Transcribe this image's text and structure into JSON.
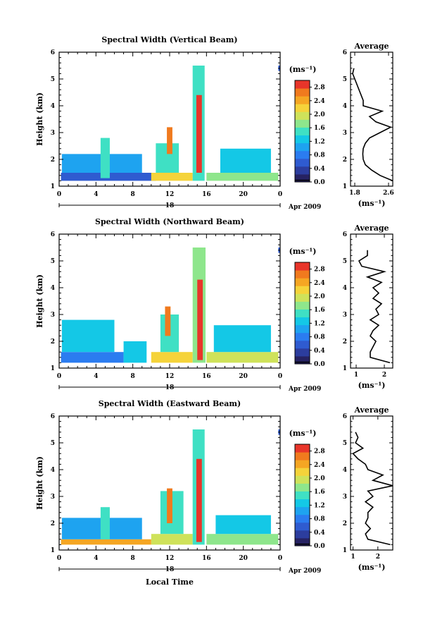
{
  "chart_data": [
    {
      "type": "heatmap",
      "title": "Spectral Width (Vertical Beam)",
      "ylabel": "Height (km)",
      "xlabel": "",
      "x_ticks": [
        "0",
        "4",
        "8",
        "12",
        "16",
        "20",
        "0"
      ],
      "y_ticks": [
        "1",
        "2",
        "3",
        "4",
        "5",
        "6"
      ],
      "xlim": [
        0,
        24
      ],
      "ylim": [
        1,
        6
      ],
      "date_label": "18",
      "date_suffix": "Apr 2009",
      "colorbar": {
        "unit": "(ms⁻¹)",
        "ticks": [
          "0.0",
          "0.4",
          "0.8",
          "1.2",
          "1.6",
          "2.0",
          "2.4",
          "2.8"
        ],
        "range": [
          0,
          3.0
        ]
      },
      "patches": [
        {
          "t": [
            0.2,
            10.5
          ],
          "h": [
            1.2,
            1.5
          ],
          "v": 0.5
        },
        {
          "t": [
            0.3,
            9.0
          ],
          "h": [
            1.5,
            2.2
          ],
          "v": 1.0
        },
        {
          "t": [
            4.5,
            5.5
          ],
          "h": [
            1.3,
            2.8
          ],
          "v": 1.4
        },
        {
          "t": [
            10.0,
            14.5
          ],
          "h": [
            1.2,
            1.5
          ],
          "v": 2.3
        },
        {
          "t": [
            10.5,
            13.0
          ],
          "h": [
            1.5,
            2.6
          ],
          "v": 1.5
        },
        {
          "t": [
            11.7,
            12.3
          ],
          "h": [
            2.2,
            3.2
          ],
          "v": 2.7
        },
        {
          "t": [
            14.5,
            15.8
          ],
          "h": [
            1.2,
            5.5
          ],
          "v": 1.6
        },
        {
          "t": [
            14.9,
            15.5
          ],
          "h": [
            1.5,
            4.4
          ],
          "v": 2.9
        },
        {
          "t": [
            16.0,
            23.8
          ],
          "h": [
            1.2,
            1.5
          ],
          "v": 1.8
        },
        {
          "t": [
            17.5,
            23.0
          ],
          "h": [
            1.5,
            2.4
          ],
          "v": 1.2
        },
        {
          "t": [
            23.8,
            24.0
          ],
          "h": [
            5.3,
            5.5
          ],
          "v": 0.6
        }
      ],
      "average": {
        "xlabel": "(ms⁻¹)",
        "title": "Average",
        "x_ticks": [
          "1.8",
          "2.6"
        ],
        "xlim": [
          1.7,
          2.7
        ],
        "ylim": [
          1,
          6
        ],
        "y_ticks": [
          "1",
          "2",
          "3",
          "4",
          "5",
          "6"
        ],
        "height": [
          1.2,
          1.4,
          1.6,
          1.8,
          2.0,
          2.2,
          2.4,
          2.6,
          2.8,
          3.0,
          3.2,
          3.4,
          3.6,
          3.8,
          4.0,
          4.2,
          4.4,
          4.6,
          4.8,
          5.0,
          5.2,
          5.4
        ],
        "value": [
          2.7,
          2.4,
          2.2,
          2.05,
          2.0,
          1.99,
          2.0,
          2.05,
          2.15,
          2.4,
          2.65,
          2.3,
          2.15,
          2.45,
          2.0,
          2.0,
          1.95,
          1.9,
          1.85,
          1.8,
          1.75,
          1.78
        ]
      }
    },
    {
      "type": "heatmap",
      "title": "Spectral Width (Northward Beam)",
      "ylabel": "Height (km)",
      "xlabel": "",
      "x_ticks": [
        "0",
        "4",
        "8",
        "12",
        "16",
        "20",
        "0"
      ],
      "y_ticks": [
        "1",
        "2",
        "3",
        "4",
        "5",
        "6"
      ],
      "xlim": [
        0,
        24
      ],
      "ylim": [
        1,
        6
      ],
      "date_label": "18",
      "date_suffix": "Apr 2009",
      "colorbar": {
        "unit": "(ms⁻¹)",
        "ticks": [
          "0.0",
          "0.4",
          "0.8",
          "1.2",
          "1.6",
          "2.0",
          "2.4",
          "2.8"
        ],
        "range": [
          0,
          3.0
        ]
      },
      "patches": [
        {
          "t": [
            0.2,
            7.0
          ],
          "h": [
            1.2,
            1.6
          ],
          "v": 0.8
        },
        {
          "t": [
            0.3,
            6.0
          ],
          "h": [
            1.6,
            2.8
          ],
          "v": 1.3
        },
        {
          "t": [
            7.0,
            9.5
          ],
          "h": [
            1.2,
            2.0
          ],
          "v": 1.2
        },
        {
          "t": [
            10.0,
            14.5
          ],
          "h": [
            1.2,
            1.6
          ],
          "v": 2.2
        },
        {
          "t": [
            11.0,
            13.0
          ],
          "h": [
            1.6,
            3.0
          ],
          "v": 1.6
        },
        {
          "t": [
            11.5,
            12.1
          ],
          "h": [
            2.2,
            3.3
          ],
          "v": 2.6
        },
        {
          "t": [
            14.5,
            15.9
          ],
          "h": [
            1.2,
            5.5
          ],
          "v": 1.7
        },
        {
          "t": [
            15.0,
            15.6
          ],
          "h": [
            1.3,
            4.3
          ],
          "v": 2.9
        },
        {
          "t": [
            16.0,
            23.8
          ],
          "h": [
            1.2,
            1.6
          ],
          "v": 1.9
        },
        {
          "t": [
            16.8,
            23.0
          ],
          "h": [
            1.6,
            2.6
          ],
          "v": 1.3
        },
        {
          "t": [
            23.8,
            24.0
          ],
          "h": [
            5.3,
            5.5
          ],
          "v": 0.6
        }
      ],
      "average": {
        "xlabel": "(ms⁻¹)",
        "title": "Average",
        "x_ticks": [
          "1",
          "2"
        ],
        "xlim": [
          0.8,
          2.3
        ],
        "ylim": [
          1,
          6
        ],
        "y_ticks": [
          "1",
          "2",
          "3",
          "4",
          "5",
          "6"
        ],
        "height": [
          1.2,
          1.4,
          1.6,
          1.8,
          2.0,
          2.2,
          2.4,
          2.6,
          2.8,
          3.0,
          3.2,
          3.4,
          3.6,
          3.8,
          4.0,
          4.2,
          4.4,
          4.6,
          4.8,
          5.0,
          5.2,
          5.4
        ],
        "value": [
          2.2,
          1.5,
          1.5,
          1.6,
          1.7,
          1.5,
          1.6,
          1.8,
          1.5,
          1.8,
          1.7,
          1.9,
          1.6,
          1.8,
          1.6,
          1.9,
          1.4,
          2.0,
          1.2,
          1.1,
          1.4,
          1.4
        ]
      }
    },
    {
      "type": "heatmap",
      "title": "Spectral Width (Eastward Beam)",
      "ylabel": "Height (km)",
      "xlabel": "Local Time",
      "x_ticks": [
        "0",
        "4",
        "8",
        "12",
        "16",
        "20",
        "0"
      ],
      "y_ticks": [
        "1",
        "2",
        "3",
        "4",
        "5",
        "6"
      ],
      "xlim": [
        0,
        24
      ],
      "ylim": [
        1,
        6
      ],
      "date_label": "18",
      "date_suffix": "Apr 2009",
      "colorbar": {
        "unit": "(ms⁻¹)",
        "ticks": [
          "0.0",
          "0.4",
          "0.8",
          "1.2",
          "1.6",
          "2.0",
          "2.4",
          "2.8"
        ],
        "range": [
          0,
          3.0
        ]
      },
      "patches": [
        {
          "t": [
            0.2,
            10.0
          ],
          "h": [
            1.2,
            1.4
          ],
          "v": 2.4
        },
        {
          "t": [
            0.3,
            9.0
          ],
          "h": [
            1.4,
            2.2
          ],
          "v": 1.0
        },
        {
          "t": [
            4.5,
            5.5
          ],
          "h": [
            1.4,
            2.6
          ],
          "v": 1.5
        },
        {
          "t": [
            10.0,
            14.5
          ],
          "h": [
            1.2,
            1.6
          ],
          "v": 1.9
        },
        {
          "t": [
            11.0,
            13.5
          ],
          "h": [
            1.6,
            3.2
          ],
          "v": 1.4
        },
        {
          "t": [
            11.7,
            12.3
          ],
          "h": [
            2.0,
            3.3
          ],
          "v": 2.6
        },
        {
          "t": [
            14.5,
            15.8
          ],
          "h": [
            1.2,
            5.5
          ],
          "v": 1.6
        },
        {
          "t": [
            14.9,
            15.5
          ],
          "h": [
            1.3,
            4.4
          ],
          "v": 2.9
        },
        {
          "t": [
            16.0,
            23.8
          ],
          "h": [
            1.2,
            1.6
          ],
          "v": 1.7
        },
        {
          "t": [
            17.0,
            23.0
          ],
          "h": [
            1.6,
            2.3
          ],
          "v": 1.2
        },
        {
          "t": [
            23.8,
            24.0
          ],
          "h": [
            5.3,
            5.5
          ],
          "v": 0.6
        }
      ],
      "average": {
        "xlabel": "(ms⁻¹)",
        "title": "Average",
        "x_ticks": [
          "1",
          "2"
        ],
        "xlim": [
          0.9,
          2.6
        ],
        "ylim": [
          1,
          6
        ],
        "y_ticks": [
          "1",
          "2",
          "3",
          "4",
          "5",
          "6"
        ],
        "height": [
          1.2,
          1.4,
          1.6,
          1.8,
          2.0,
          2.2,
          2.4,
          2.6,
          2.8,
          3.0,
          3.2,
          3.4,
          3.6,
          3.8,
          4.0,
          4.2,
          4.4,
          4.6,
          4.8,
          5.0,
          5.2,
          5.4
        ],
        "value": [
          2.5,
          1.6,
          1.5,
          1.7,
          1.5,
          1.6,
          1.6,
          1.8,
          1.5,
          1.8,
          1.6,
          2.6,
          1.8,
          2.2,
          1.6,
          1.5,
          1.2,
          1.0,
          1.4,
          1.1,
          1.2,
          1.1
        ]
      }
    }
  ]
}
